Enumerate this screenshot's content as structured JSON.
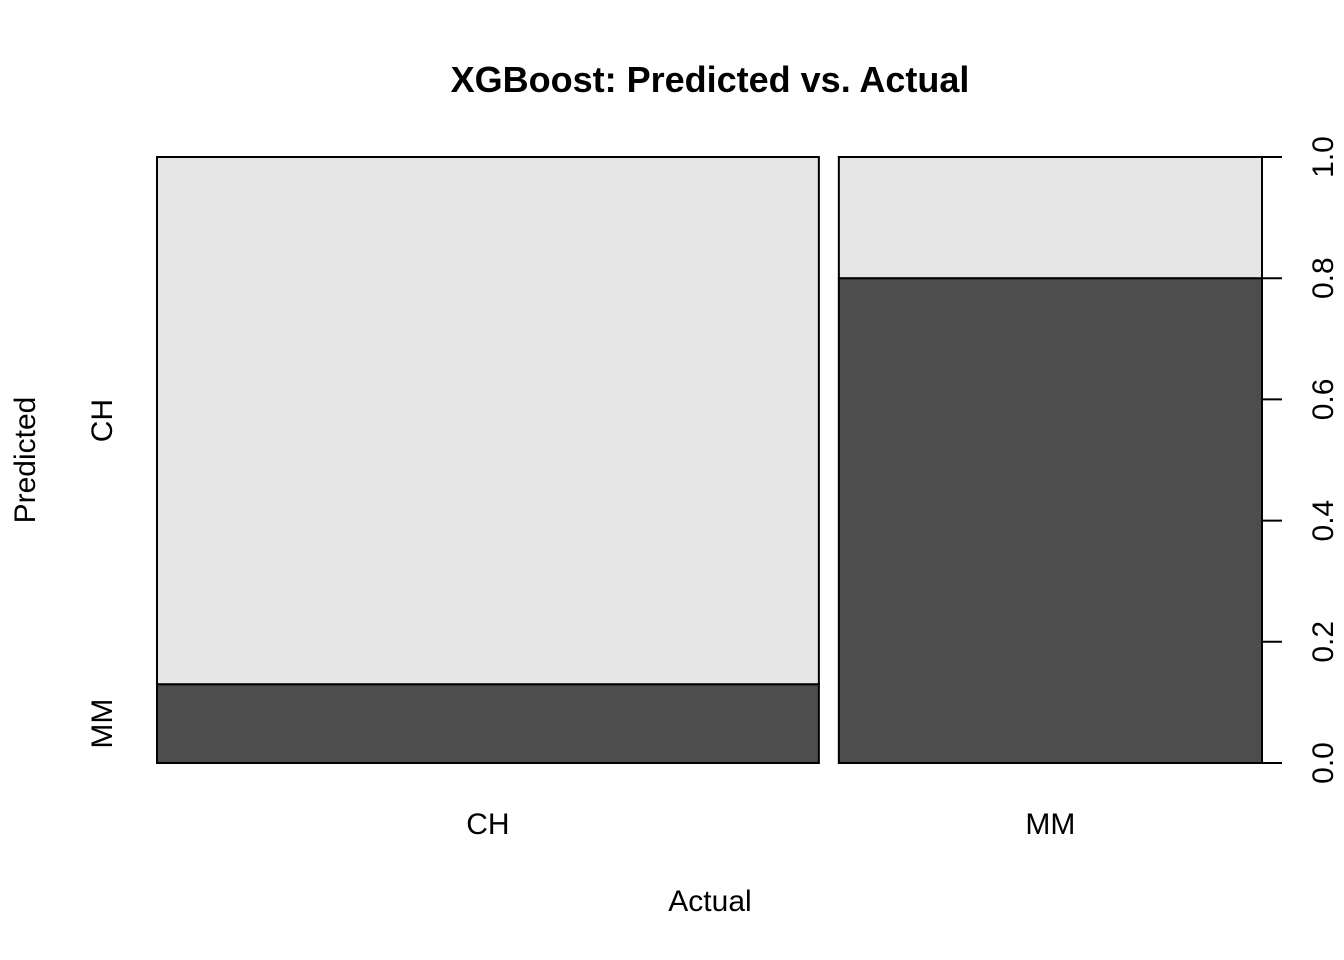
{
  "chart_data": {
    "type": "mosaic",
    "title": "XGBoost: Predicted vs. Actual",
    "xlabel": "Actual",
    "ylabel": "Predicted",
    "x_categories": [
      "CH",
      "MM"
    ],
    "y_categories": [
      "MM",
      "CH"
    ],
    "column_proportions": [
      0.61,
      0.39
    ],
    "cells": [
      {
        "actual": "CH",
        "predicted": "MM",
        "fraction": 0.13
      },
      {
        "actual": "CH",
        "predicted": "CH",
        "fraction": 0.87
      },
      {
        "actual": "MM",
        "predicted": "MM",
        "fraction": 0.8
      },
      {
        "actual": "MM",
        "predicted": "CH",
        "fraction": 0.2
      }
    ],
    "right_axis": {
      "ylim": [
        0,
        1
      ],
      "ticks": [
        "0.0",
        "0.2",
        "0.4",
        "0.6",
        "0.8",
        "1.0"
      ]
    },
    "colors": {
      "MM": "#4d4d4d",
      "CH": "#e6e6e6"
    },
    "grid": false
  }
}
